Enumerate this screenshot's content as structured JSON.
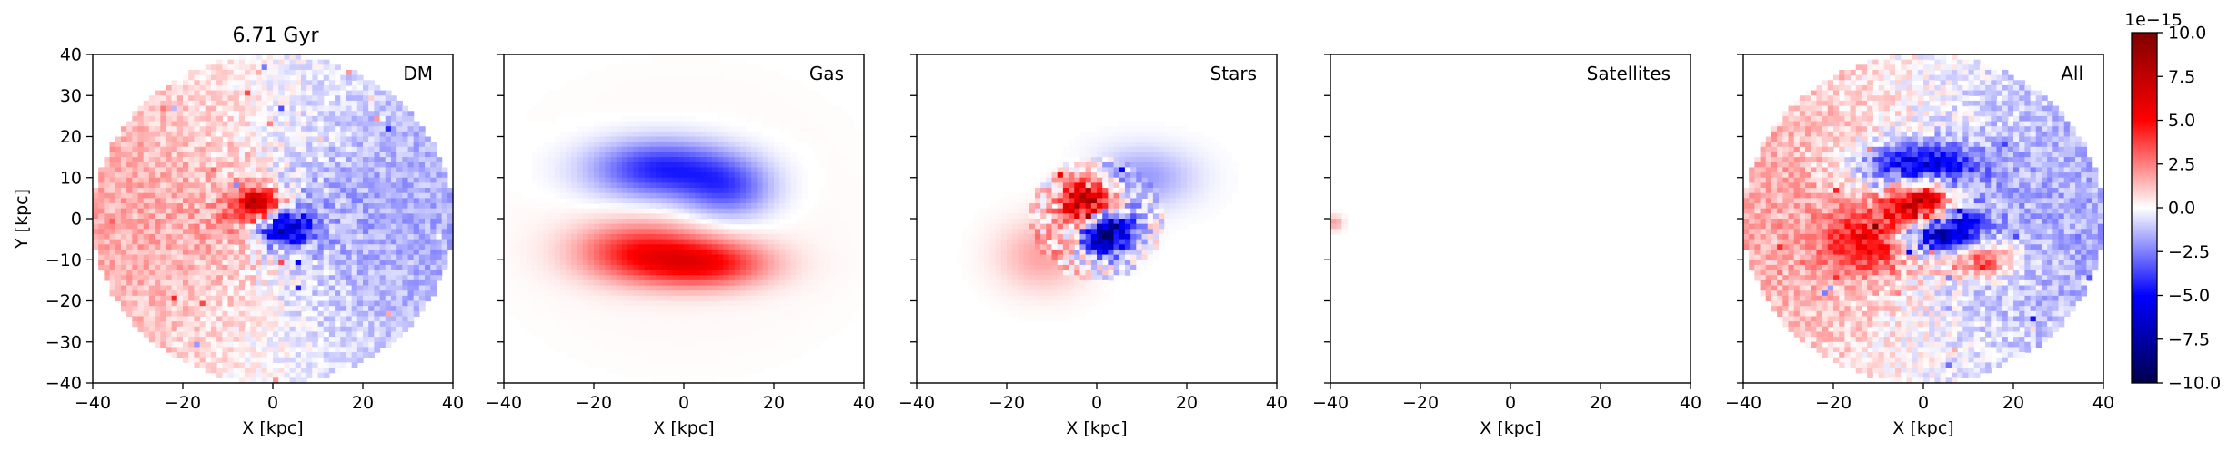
{
  "figure": {
    "title": "6.71 Gyr",
    "colorbar": {
      "colormap": "seismic",
      "range": [
        -10,
        10
      ],
      "ticks": [
        "10.0",
        "7.5",
        "5.0",
        "2.5",
        "0.0",
        "−2.5",
        "−5.0",
        "−7.5",
        "−10.0"
      ],
      "tick_values": [
        10,
        7.5,
        5,
        2.5,
        0,
        -2.5,
        -5,
        -7.5,
        -10
      ],
      "offset_label": "1e−15"
    }
  },
  "chart_data": [
    {
      "type": "heatmap",
      "label": "DM",
      "xlabel": "X [kpc]",
      "ylabel": "Y [kpc]",
      "xlim": [
        -40,
        40
      ],
      "ylim": [
        -40,
        40
      ],
      "xticks": [
        "−40",
        "−20",
        "0",
        "20",
        "40"
      ],
      "yticks": [
        "40",
        "30",
        "20",
        "10",
        "0",
        "−10",
        "−20",
        "−30",
        "−40"
      ],
      "grid": false,
      "features": [
        {
          "kind": "disk",
          "radius": 40,
          "value": 0
        },
        {
          "kind": "dipole",
          "cx": 0,
          "cy": 0,
          "angle_deg": 90,
          "amplitude": 1.6,
          "radius": 40
        },
        {
          "kind": "blob",
          "cx": -3,
          "cy": 3,
          "sx": 4,
          "sy": 3,
          "value": 7
        },
        {
          "kind": "blob",
          "cx": 2,
          "cy": -2,
          "sx": 4,
          "sy": 3,
          "value": -7
        },
        {
          "kind": "noise",
          "amplitude": 1.5
        }
      ]
    },
    {
      "type": "heatmap",
      "label": "Gas",
      "xlabel": "X [kpc]",
      "xlim": [
        -40,
        40
      ],
      "ylim": [
        -40,
        40
      ],
      "xticks": [
        "−40",
        "−20",
        "0",
        "20",
        "40"
      ],
      "yticks": [],
      "grid": false,
      "features": [
        {
          "kind": "blob",
          "cx": -5,
          "cy": 12,
          "sx": 11,
          "sy": 5,
          "value": -4.5
        },
        {
          "kind": "blob",
          "cx": 10,
          "cy": 7,
          "sx": 7,
          "sy": 5,
          "value": -3
        },
        {
          "kind": "blob",
          "cx": -10,
          "cy": -8,
          "sx": 10,
          "sy": 5,
          "value": 4
        },
        {
          "kind": "blob",
          "cx": 5,
          "cy": -11,
          "sx": 10,
          "sy": 4,
          "value": 4.5
        },
        {
          "kind": "blob",
          "cx": 0,
          "cy": 0,
          "sx": 28,
          "sy": 24,
          "value": 0.2
        }
      ]
    },
    {
      "type": "heatmap",
      "label": "Stars",
      "xlabel": "X [kpc]",
      "xlim": [
        -40,
        40
      ],
      "ylim": [
        -40,
        40
      ],
      "xticks": [
        "−40",
        "−20",
        "0",
        "20",
        "40"
      ],
      "yticks": [],
      "grid": false,
      "features": [
        {
          "kind": "blob",
          "cx": -2,
          "cy": 4,
          "sx": 4,
          "sy": 4,
          "value": 9
        },
        {
          "kind": "blob",
          "cx": 2,
          "cy": -3,
          "sx": 4,
          "sy": 4,
          "value": -9
        },
        {
          "kind": "blob",
          "cx": 10,
          "cy": 10,
          "sx": 8,
          "sy": 5,
          "value": -2
        },
        {
          "kind": "blob",
          "cx": -12,
          "cy": -9,
          "sx": 7,
          "sy": 6,
          "value": 1.8
        },
        {
          "kind": "noise",
          "amplitude": 2,
          "radius": 15
        }
      ]
    },
    {
      "type": "heatmap",
      "label": "Satellites",
      "xlabel": "X [kpc]",
      "xlim": [
        -40,
        40
      ],
      "ylim": [
        -40,
        40
      ],
      "xticks": [
        "−40",
        "−20",
        "0",
        "20",
        "40"
      ],
      "yticks": [],
      "grid": false,
      "features": [
        {
          "kind": "blob",
          "cx": -39,
          "cy": -1,
          "sx": 1.2,
          "sy": 1.2,
          "value": 2
        }
      ]
    },
    {
      "type": "heatmap",
      "label": "All",
      "xlabel": "X [kpc]",
      "xlim": [
        -40,
        40
      ],
      "ylim": [
        -40,
        40
      ],
      "xticks": [
        "−40",
        "−20",
        "0",
        "20",
        "40"
      ],
      "yticks": [],
      "grid": false,
      "features": [
        {
          "kind": "disk",
          "radius": 40,
          "value": 0
        },
        {
          "kind": "dipole",
          "cx": 0,
          "cy": 0,
          "angle_deg": 90,
          "amplitude": 1.6,
          "radius": 40
        },
        {
          "kind": "blob",
          "cx": -2,
          "cy": 13,
          "sx": 9,
          "sy": 4,
          "value": -6
        },
        {
          "kind": "blob",
          "cx": 0,
          "cy": 3,
          "sx": 5,
          "sy": 4,
          "value": 9
        },
        {
          "kind": "blob",
          "cx": 3,
          "cy": -3,
          "sx": 6,
          "sy": 4,
          "value": -8
        },
        {
          "kind": "blob",
          "cx": 12,
          "cy": -10,
          "sx": 6,
          "sy": 3,
          "value": 5
        },
        {
          "kind": "blob",
          "cx": -12,
          "cy": -6,
          "sx": 7,
          "sy": 5,
          "value": 4
        },
        {
          "kind": "noise",
          "amplitude": 1.8
        }
      ]
    }
  ]
}
